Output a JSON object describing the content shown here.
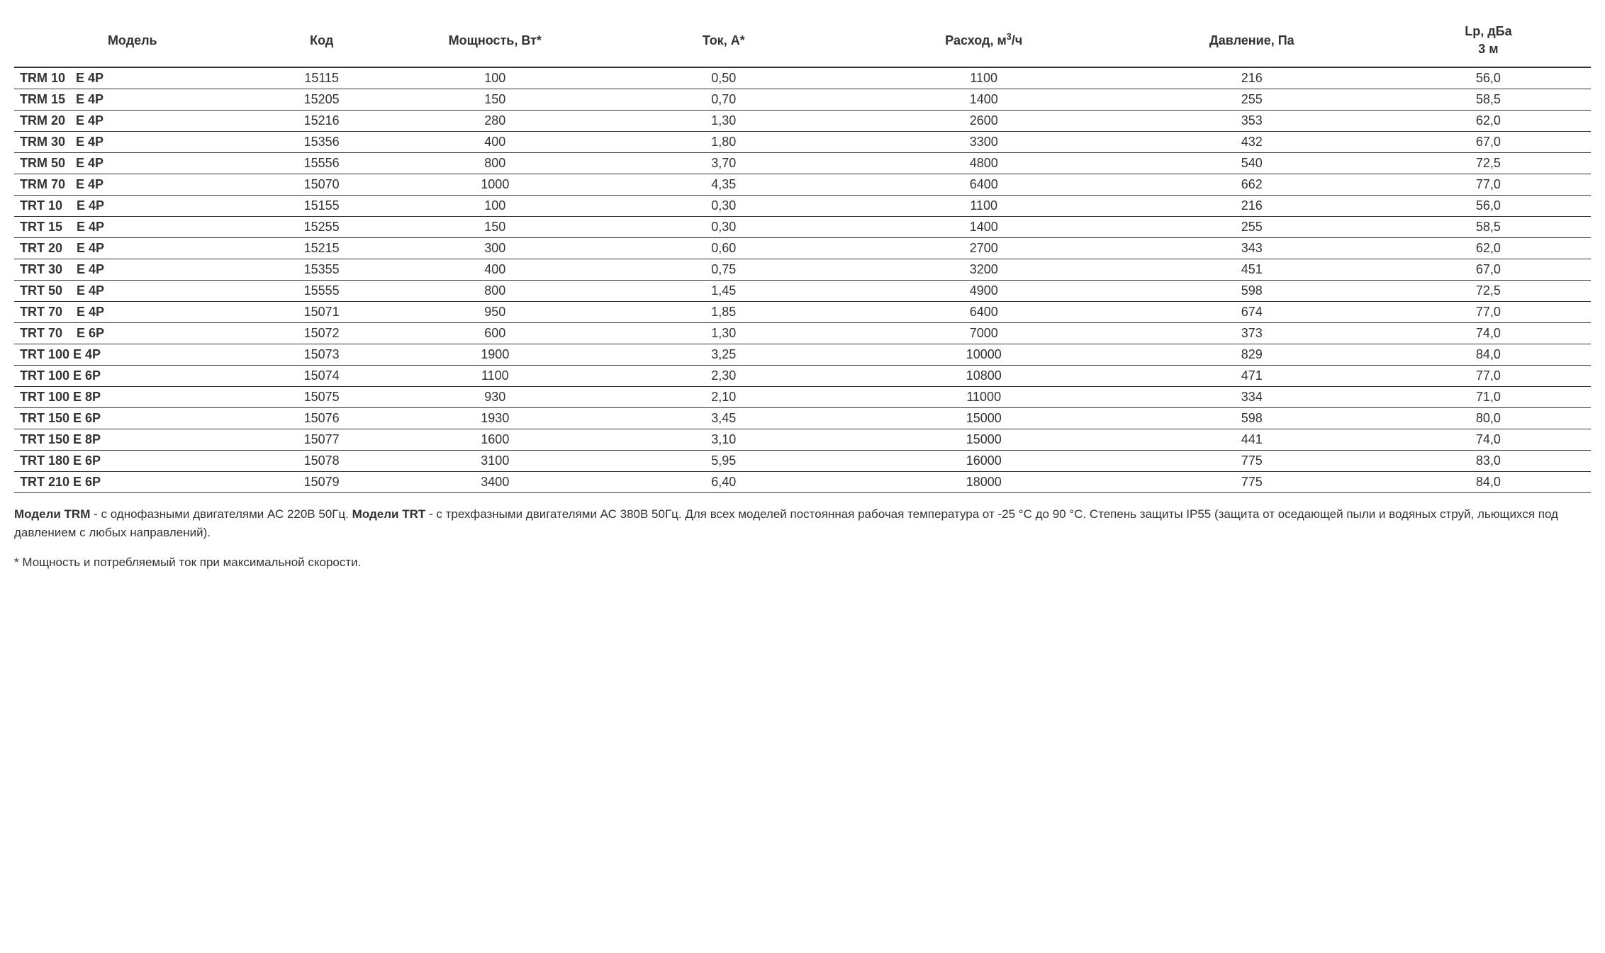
{
  "table": {
    "columns": [
      "Модель",
      "Код",
      "Мощность, Вт*",
      "Ток, А*",
      "Расход, м³/ч",
      "Давление, Па",
      "Lp, дБа\n3 м"
    ],
    "column_widths": [
      "15%",
      "9%",
      "13%",
      "16%",
      "17%",
      "17%",
      "13%"
    ],
    "rows": [
      [
        "TRM 10   E 4P",
        "15115",
        "100",
        "0,50",
        "1100",
        "216",
        "56,0"
      ],
      [
        "TRM 15   E 4P",
        "15205",
        "150",
        "0,70",
        "1400",
        "255",
        "58,5"
      ],
      [
        "TRM 20   E 4P",
        "15216",
        "280",
        "1,30",
        "2600",
        "353",
        "62,0"
      ],
      [
        "TRM 30   E 4P",
        "15356",
        "400",
        "1,80",
        "3300",
        "432",
        "67,0"
      ],
      [
        "TRM 50   E 4P",
        "15556",
        "800",
        "3,70",
        "4800",
        "540",
        "72,5"
      ],
      [
        "TRM 70   E 4P",
        "15070",
        "1000",
        "4,35",
        "6400",
        "662",
        "77,0"
      ],
      [
        "TRT 10    E 4P",
        "15155",
        "100",
        "0,30",
        "1100",
        "216",
        "56,0"
      ],
      [
        "TRT 15    E 4P",
        "15255",
        "150",
        "0,30",
        "1400",
        "255",
        "58,5"
      ],
      [
        "TRT 20    E 4P",
        "15215",
        "300",
        "0,60",
        "2700",
        "343",
        "62,0"
      ],
      [
        "TRT 30    E 4P",
        "15355",
        "400",
        "0,75",
        "3200",
        "451",
        "67,0"
      ],
      [
        "TRT 50    E 4P",
        "15555",
        "800",
        "1,45",
        "4900",
        "598",
        "72,5"
      ],
      [
        "TRT 70    E 4P",
        "15071",
        "950",
        "1,85",
        "6400",
        "674",
        "77,0"
      ],
      [
        "TRT 70    E 6P",
        "15072",
        "600",
        "1,30",
        "7000",
        "373",
        "74,0"
      ],
      [
        "TRT 100 E 4P",
        "15073",
        "1900",
        "3,25",
        "10000",
        "829",
        "84,0"
      ],
      [
        "TRT 100 E 6P",
        "15074",
        "1100",
        "2,30",
        "10800",
        "471",
        "77,0"
      ],
      [
        "TRT 100 E 8P",
        "15075",
        "930",
        "2,10",
        "11000",
        "334",
        "71,0"
      ],
      [
        "TRT 150 E 6P",
        "15076",
        "1930",
        "3,45",
        "15000",
        "598",
        "80,0"
      ],
      [
        "TRT 150 E 8P",
        "15077",
        "1600",
        "3,10",
        "15000",
        "441",
        "74,0"
      ],
      [
        "TRT 180 E 6P",
        "15078",
        "3100",
        "5,95",
        "16000",
        "775",
        "83,0"
      ],
      [
        "TRT 210 E 6P",
        "15079",
        "3400",
        "6,40",
        "18000",
        "775",
        "84,0"
      ]
    ]
  },
  "footnote": {
    "bold1": "Модели TRM",
    "text1": " - с однофазными двигателями АС 220В 50Гц. ",
    "bold2": "Модели TRT",
    "text2": " - с трехфазными двигателями АС 380В 50Гц. Для всех моделей постоянная рабочая температура от -25 °С до 90 °С. Степень защиты IP55 (защита от оседающей пыли и водяных струй, льющихся под давлением с любых направлений).",
    "asterisk": "* Мощность и потребляемый ток при максимальной скорости."
  },
  "styles": {
    "font_family": "Arial",
    "header_fontsize": 18,
    "body_fontsize": 18,
    "footnote_fontsize": 17,
    "text_color": "#333333",
    "border_color": "#333333",
    "background_color": "#ffffff"
  }
}
